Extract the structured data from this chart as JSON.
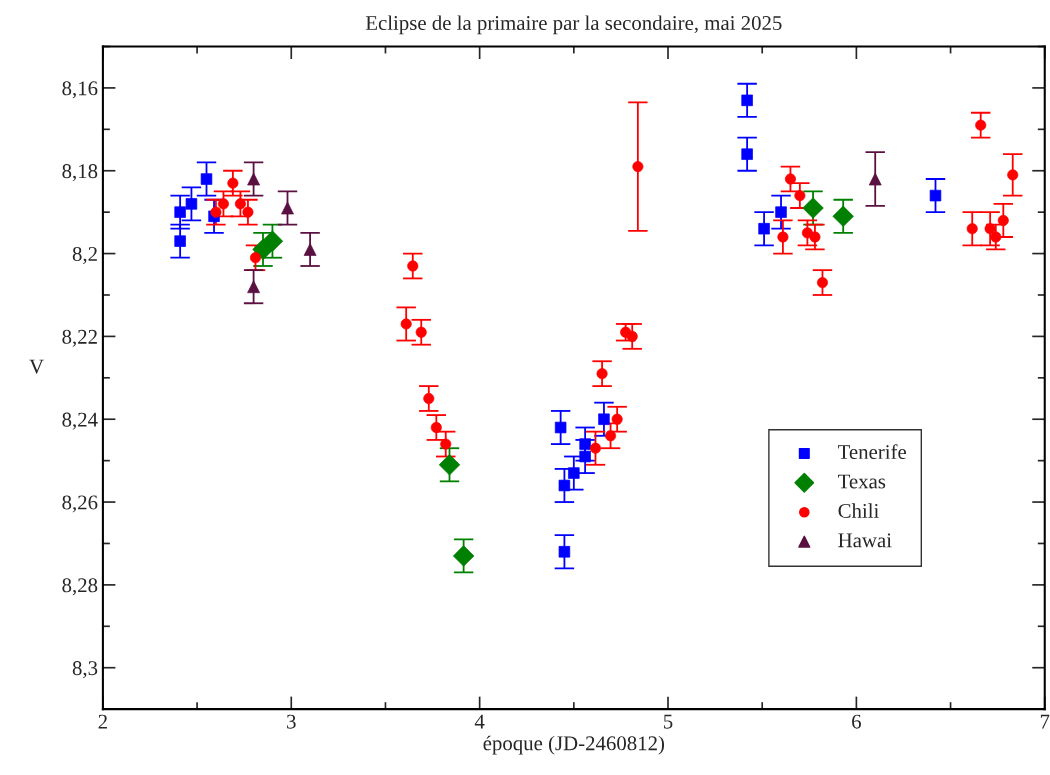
{
  "chart_data": {
    "type": "scatter",
    "title": "Eclipse de la primaire par la secondaire, mai 2025",
    "xlabel": "époque (JD-2460812)",
    "ylabel": "V",
    "xlim": [
      2,
      7
    ],
    "ylim": [
      8.31,
      8.15
    ],
    "xticks": [
      2,
      3,
      4,
      5,
      6,
      7
    ],
    "yticks": [
      {
        "value": 8.16,
        "label": "8,16"
      },
      {
        "value": 8.18,
        "label": "8,18"
      },
      {
        "value": 8.2,
        "label": "8,2"
      },
      {
        "value": 8.22,
        "label": "8,22"
      },
      {
        "value": 8.24,
        "label": "8,24"
      },
      {
        "value": 8.26,
        "label": "8,26"
      },
      {
        "value": 8.28,
        "label": "8,28"
      },
      {
        "value": 8.3,
        "label": "8,3"
      }
    ],
    "grid": false,
    "legend": "bottom right",
    "series": [
      {
        "name": "Tenerife",
        "color": "#0000ff",
        "marker": "square",
        "x": [
          2.41,
          2.41,
          2.47,
          2.55,
          2.59,
          4.43,
          4.45,
          4.45,
          4.5,
          4.56,
          4.56,
          4.66,
          5.42,
          5.42,
          5.6,
          5.51,
          6.42
        ],
        "values": [
          8.19,
          8.197,
          8.188,
          8.182,
          8.191,
          8.242,
          8.272,
          8.256,
          8.253,
          8.249,
          8.246,
          8.24,
          8.163,
          8.176,
          8.19,
          8.194,
          8.186
        ],
        "errors": [
          0.004,
          0.004,
          0.004,
          0.004,
          0.004,
          0.004,
          0.004,
          0.004,
          0.004,
          0.004,
          0.004,
          0.004,
          0.004,
          0.004,
          0.004,
          0.004,
          0.004
        ]
      },
      {
        "name": "Texas",
        "color": "#008000",
        "marker": "diamond",
        "x": [
          2.85,
          2.9,
          3.84,
          3.915,
          5.77,
          5.93
        ],
        "values": [
          8.199,
          8.197,
          8.251,
          8.273,
          8.189,
          8.191
        ],
        "errors": [
          0.004,
          0.004,
          0.004,
          0.004,
          0.004,
          0.004
        ]
      },
      {
        "name": "Chili",
        "color": "#ff0000",
        "marker": "circle",
        "x": [
          2.6,
          2.64,
          2.69,
          2.73,
          2.77,
          2.81,
          3.645,
          3.61,
          3.69,
          3.73,
          3.77,
          3.82,
          4.615,
          4.65,
          4.695,
          4.73,
          4.775,
          4.81,
          4.84,
          5.61,
          5.65,
          5.7,
          5.74,
          5.78,
          5.82,
          6.615,
          6.66,
          6.71,
          6.74,
          6.78,
          6.83
        ],
        "values": [
          8.19,
          8.188,
          8.183,
          8.188,
          8.19,
          8.201,
          8.203,
          8.217,
          8.219,
          8.235,
          8.242,
          8.246,
          8.247,
          8.229,
          8.244,
          8.24,
          8.219,
          8.22,
          8.179,
          8.196,
          8.182,
          8.186,
          8.195,
          8.196,
          8.207,
          8.194,
          8.169,
          8.194,
          8.196,
          8.192,
          8.181
        ],
        "errors": [
          0.003,
          0.003,
          0.003,
          0.003,
          0.003,
          0.003,
          0.003,
          0.004,
          0.003,
          0.003,
          0.003,
          0.003,
          0.004,
          0.003,
          0.003,
          0.003,
          0.002,
          0.003,
          0.0155,
          0.004,
          0.003,
          0.003,
          0.003,
          0.003,
          0.003,
          0.004,
          0.003,
          0.004,
          0.003,
          0.004,
          0.005
        ]
      },
      {
        "name": "Hawai",
        "color": "#5a1040",
        "marker": "triangle",
        "x": [
          2.8,
          2.98,
          3.1,
          2.8,
          6.1
        ],
        "values": [
          8.182,
          8.189,
          8.199,
          8.208,
          8.182
        ],
        "errors": [
          0.004,
          0.004,
          0.004,
          0.004,
          0.0065
        ]
      }
    ]
  }
}
